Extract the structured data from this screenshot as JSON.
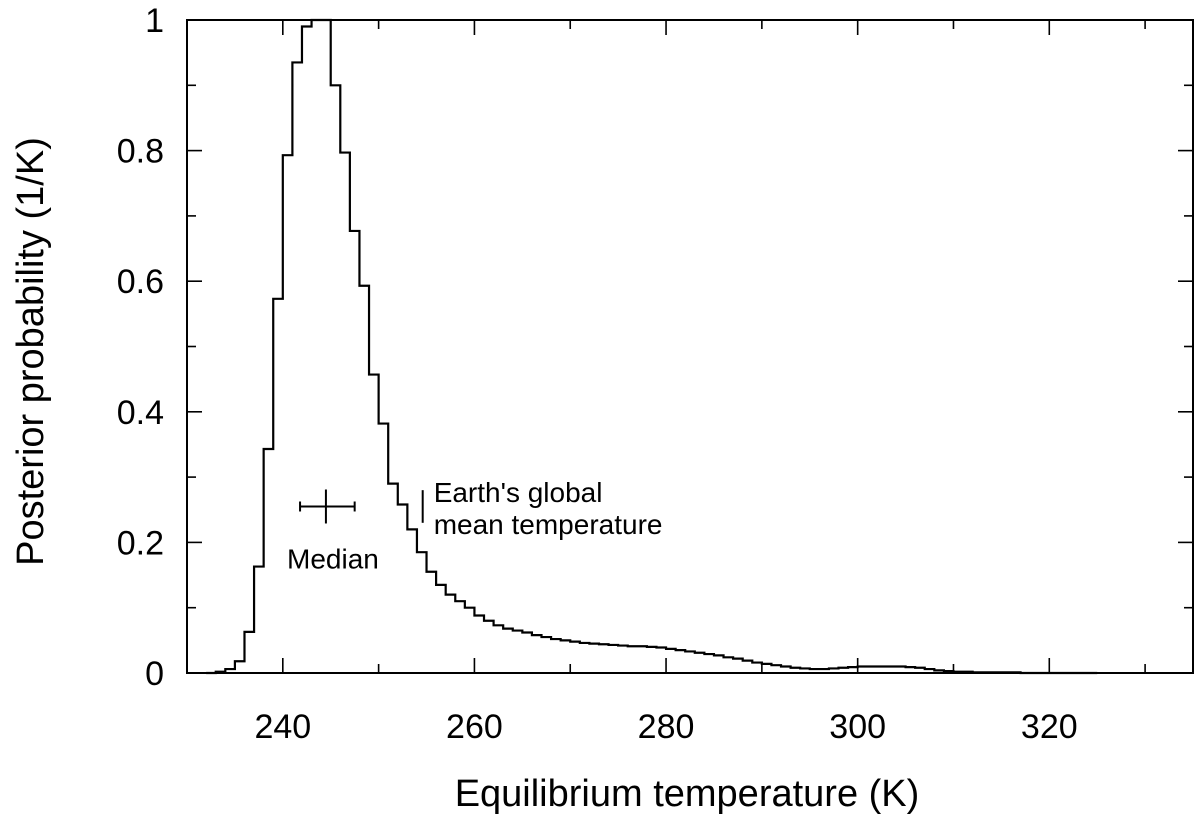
{
  "chart_data": {
    "type": "histogram",
    "xlabel": "Equilibrium temperature (K)",
    "ylabel": "Posterior probability (1/K)",
    "xlim": [
      230,
      335
    ],
    "ylim": [
      0,
      1
    ],
    "x_ticks": [
      240,
      260,
      280,
      300,
      320
    ],
    "x_tick_labels": [
      "240",
      "260",
      "280",
      "300",
      "320"
    ],
    "y_ticks": [
      0,
      0.2,
      0.4,
      0.6,
      0.8,
      1
    ],
    "y_tick_labels": [
      "0",
      "0.2",
      "0.4",
      "0.6",
      "0.8",
      "1"
    ],
    "x_minor_ticks": [
      250,
      270,
      290,
      310,
      330
    ],
    "y_minor_ticks": [
      0.1,
      0.3,
      0.5,
      0.7,
      0.9
    ],
    "bin_width": 1,
    "bins_start": 232,
    "values": [
      0.0,
      0.002,
      0.006,
      0.018,
      0.063,
      0.163,
      0.343,
      0.573,
      0.793,
      0.935,
      0.99,
      1.0,
      1.0,
      0.9,
      0.797,
      0.677,
      0.593,
      0.457,
      0.382,
      0.29,
      0.258,
      0.22,
      0.185,
      0.155,
      0.135,
      0.12,
      0.11,
      0.1,
      0.088,
      0.08,
      0.073,
      0.068,
      0.065,
      0.062,
      0.058,
      0.055,
      0.052,
      0.05,
      0.048,
      0.046,
      0.045,
      0.044,
      0.043,
      0.042,
      0.041,
      0.041,
      0.04,
      0.039,
      0.037,
      0.035,
      0.033,
      0.031,
      0.029,
      0.027,
      0.024,
      0.022,
      0.019,
      0.016,
      0.014,
      0.012,
      0.01,
      0.008,
      0.007,
      0.006,
      0.006,
      0.007,
      0.008,
      0.009,
      0.01,
      0.01,
      0.01,
      0.01,
      0.01,
      0.009,
      0.008,
      0.006,
      0.004,
      0.003,
      0.002,
      0.002,
      0.001,
      0.001,
      0.001,
      0.001,
      0.001,
      0.0,
      0.0,
      0.0,
      0.0,
      0.0,
      0.0,
      0.0,
      0.0
    ],
    "median": {
      "label": "Median",
      "x": 244.5,
      "x_low": 241.8,
      "x_high": 247.5,
      "y": 0.255
    },
    "earth": {
      "label_line1": "Earth's global",
      "label_line2": "mean temperature",
      "x": 254.6,
      "y_low": 0.23,
      "y_high": 0.28
    },
    "grid": false,
    "legend": "none",
    "line_color": "#000000"
  }
}
